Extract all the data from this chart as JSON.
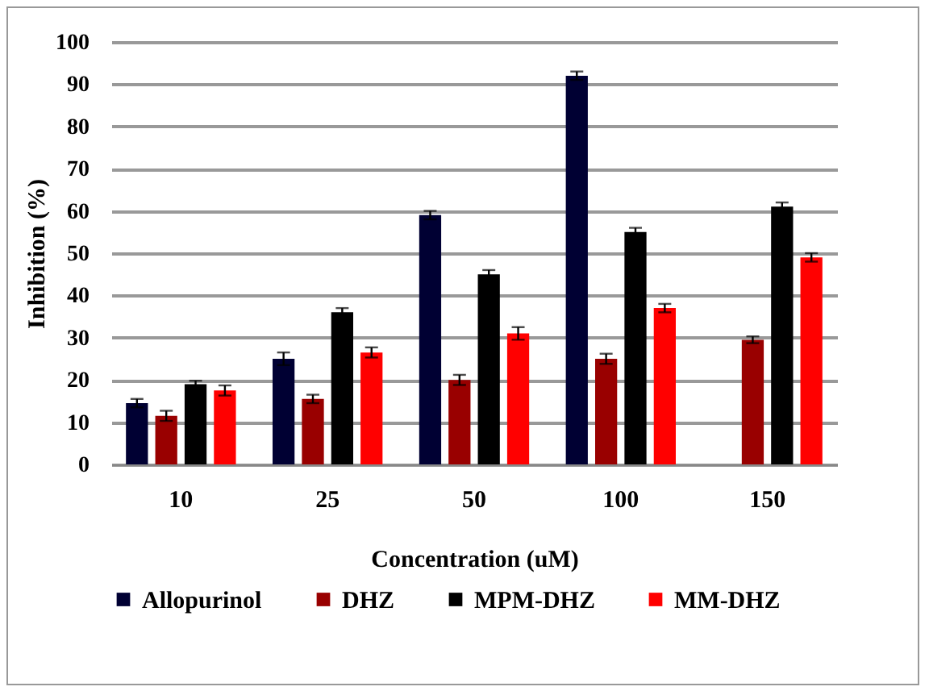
{
  "chart_data": {
    "type": "bar",
    "xlabel": "Concentration (uM)",
    "ylabel": "Inhibition  (%)",
    "categories": [
      "10",
      "25",
      "50",
      "100",
      "150"
    ],
    "series": [
      {
        "name": "Allopurinol",
        "color": "#000033",
        "values": [
          14.5,
          25,
          59,
          92,
          null
        ],
        "errors": [
          1,
          1.5,
          1,
          1,
          null
        ]
      },
      {
        "name": "DHZ",
        "color": "#990000",
        "values": [
          11.5,
          15.5,
          20,
          25,
          29.5
        ],
        "errors": [
          1.2,
          1,
          1.2,
          1.2,
          0.8
        ]
      },
      {
        "name": "MPM-DHZ",
        "color": "#000000",
        "values": [
          19,
          36,
          45,
          55,
          61
        ],
        "errors": [
          0.8,
          1,
          1,
          1,
          1
        ]
      },
      {
        "name": "MM-DHZ",
        "color": "#ff0000",
        "values": [
          17.5,
          26.5,
          31,
          37,
          49
        ],
        "errors": [
          1.2,
          1.2,
          1.5,
          1,
          1
        ]
      }
    ],
    "ylim": [
      0,
      100
    ],
    "yticks": [
      0,
      10,
      20,
      30,
      40,
      50,
      60,
      70,
      80,
      90,
      100
    ],
    "grid": "y",
    "legend": "bottom"
  }
}
